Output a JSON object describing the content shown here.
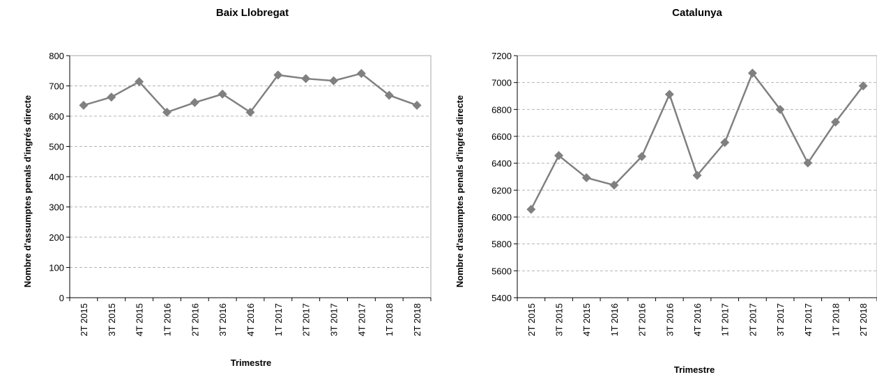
{
  "chart_data": [
    {
      "type": "line",
      "title": "Baix Llobregat",
      "xlabel": "Trimestre",
      "ylabel": "Nombre d'assumptes penals d'ingrés directe",
      "ylim": [
        0,
        800
      ],
      "yticks": [
        0,
        100,
        200,
        300,
        400,
        500,
        600,
        700,
        800
      ],
      "grid": true,
      "categories": [
        "2T 2015",
        "3T 2015",
        "4T 2015",
        "1T 2016",
        "2T 2016",
        "3T 2016",
        "4T 2016",
        "1T 2017",
        "2T 2017",
        "3T 2017",
        "4T 2017",
        "1T 2018",
        "2T 2018"
      ],
      "series": [
        {
          "values": [
            636,
            663,
            714,
            613,
            645,
            673,
            613,
            736,
            724,
            717,
            741,
            669,
            636
          ],
          "color": "#808080",
          "marker": "diamond"
        }
      ]
    },
    {
      "type": "line",
      "title": "Catalunya",
      "xlabel": "Trimestre",
      "ylabel": "Nombre d'assumptes penals d'ingrés directe",
      "ylim": [
        5400,
        7200
      ],
      "yticks": [
        5400,
        5600,
        5800,
        6000,
        6200,
        6400,
        6600,
        6800,
        7000,
        7200
      ],
      "grid": true,
      "categories": [
        "2T 2015",
        "3T 2015",
        "4T 2015",
        "1T 2016",
        "2T 2016",
        "3T 2016",
        "4T 2016",
        "1T 2017",
        "2T 2017",
        "3T 2017",
        "4T 2017",
        "1T 2018",
        "2T 2018"
      ],
      "series": [
        {
          "values": [
            6057,
            6457,
            6292,
            6237,
            6450,
            6912,
            6310,
            6554,
            7070,
            6800,
            6402,
            6706,
            6975
          ],
          "color": "#808080",
          "marker": "diamond"
        }
      ]
    }
  ]
}
